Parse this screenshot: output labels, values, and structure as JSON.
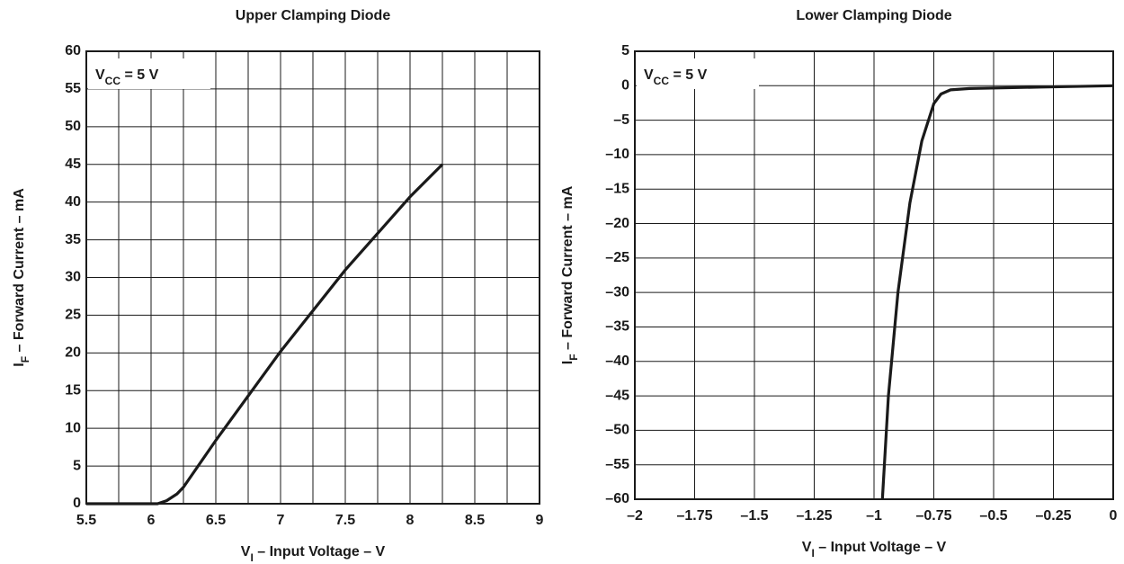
{
  "chart_data": [
    {
      "type": "line",
      "title": "Upper Clamping Diode",
      "xlabel": [
        {
          "text": "V"
        },
        {
          "text": "I",
          "sub": true
        },
        {
          "text": " – Input Voltage – V"
        }
      ],
      "ylabel": [
        {
          "text": "I"
        },
        {
          "text": "F",
          "sub": true
        },
        {
          "text": " – Forward Current – mA"
        }
      ],
      "annotation": [
        {
          "text": "V"
        },
        {
          "text": "CC",
          "sub": true
        },
        {
          "text": " = 5 V"
        }
      ],
      "xlim": [
        5.5,
        9
      ],
      "xticks": [
        5.5,
        6,
        6.5,
        7,
        7.5,
        8,
        8.5,
        9
      ],
      "xgrid": [
        5.5,
        5.75,
        6,
        6.25,
        6.5,
        6.75,
        7,
        7.25,
        7.5,
        7.75,
        8,
        8.25,
        8.5,
        8.75,
        9
      ],
      "ylim": [
        0,
        60
      ],
      "yticks": [
        0,
        5,
        10,
        15,
        20,
        25,
        30,
        35,
        40,
        45,
        50,
        55,
        60
      ],
      "grid": true,
      "series": [
        {
          "color": "#1a1a1a",
          "x": [
            5.5,
            5.8,
            6.05,
            6.12,
            6.2,
            6.25,
            6.5,
            7,
            7.5,
            8,
            8.25
          ],
          "values": [
            0,
            0,
            0,
            0.4,
            1.3,
            2.2,
            8.4,
            20.2,
            31,
            40.7,
            45
          ]
        }
      ]
    },
    {
      "type": "line",
      "title": "Lower Clamping Diode",
      "xlabel": [
        {
          "text": "V"
        },
        {
          "text": "I",
          "sub": true
        },
        {
          "text": " – Input Voltage – V"
        }
      ],
      "ylabel": [
        {
          "text": "I"
        },
        {
          "text": "F",
          "sub": true
        },
        {
          "text": " – Forward Current – mA"
        }
      ],
      "annotation": [
        {
          "text": "V"
        },
        {
          "text": "CC",
          "sub": true
        },
        {
          "text": " = 5 V"
        }
      ],
      "xlim": [
        -2,
        0
      ],
      "xticks": [
        {
          "value": -2,
          "label": "–2"
        },
        {
          "value": -1.75,
          "label": "–1.75"
        },
        {
          "value": -1.5,
          "label": "–1.5"
        },
        {
          "value": -1.25,
          "label": "–1.25"
        },
        {
          "value": -1,
          "label": "–1"
        },
        {
          "value": -0.75,
          "label": "–0.75"
        },
        {
          "value": -0.5,
          "label": "–0.5"
        },
        {
          "value": -0.25,
          "label": "–0.25"
        },
        0
      ],
      "ylim": [
        -60,
        5
      ],
      "yticks": [
        {
          "value": -60,
          "label": "–60"
        },
        {
          "value": -55,
          "label": "–55"
        },
        {
          "value": -50,
          "label": "–50"
        },
        {
          "value": -45,
          "label": "–45"
        },
        {
          "value": -40,
          "label": "–40"
        },
        {
          "value": -35,
          "label": "–35"
        },
        {
          "value": -30,
          "label": "–30"
        },
        {
          "value": -25,
          "label": "–25"
        },
        {
          "value": -20,
          "label": "–20"
        },
        {
          "value": -15,
          "label": "–15"
        },
        {
          "value": -10,
          "label": "–10"
        },
        {
          "value": -5,
          "label": "–5"
        },
        0,
        5
      ],
      "grid": true,
      "series": [
        {
          "color": "#1a1a1a",
          "x": [
            -0.965,
            -0.94,
            -0.9,
            -0.85,
            -0.8,
            -0.75,
            -0.72,
            -0.68,
            -0.6,
            -0.3,
            0
          ],
          "values": [
            -60,
            -45,
            -30,
            -17,
            -8,
            -2.6,
            -1.2,
            -0.6,
            -0.4,
            -0.2,
            0
          ]
        }
      ]
    }
  ]
}
